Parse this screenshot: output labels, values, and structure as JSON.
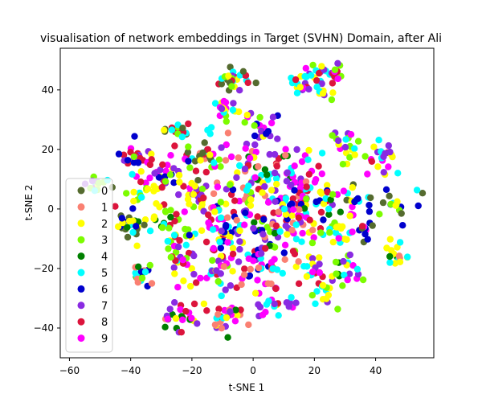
{
  "chart_data": {
    "type": "scatter",
    "title": "visualisation of network embeddings in Target (SVHN) Domain, after Ali",
    "xlabel": "t-SNE 1",
    "ylabel": "t-SNE 2",
    "xlim": [
      -63,
      59
    ],
    "ylim": [
      -50,
      54
    ],
    "xticks": [
      -60,
      -40,
      -20,
      0,
      20,
      40
    ],
    "yticks": [
      -40,
      -20,
      0,
      20,
      40
    ],
    "grid": false,
    "legend_position": "center-left",
    "series": [
      {
        "name": "0",
        "color": "#556b2f"
      },
      {
        "name": "1",
        "color": "#fa8072"
      },
      {
        "name": "2",
        "color": "#ffff00"
      },
      {
        "name": "3",
        "color": "#7cfc00"
      },
      {
        "name": "4",
        "color": "#008000"
      },
      {
        "name": "5",
        "color": "#00ffff"
      },
      {
        "name": "6",
        "color": "#0000cd"
      },
      {
        "name": "7",
        "color": "#8a2be2"
      },
      {
        "name": "8",
        "color": "#dc143c"
      },
      {
        "name": "9",
        "color": "#ff00ff"
      }
    ],
    "clusters": [
      {
        "x": -6,
        "y": 44,
        "spread": 2.5,
        "n": 28,
        "series": [
          7,
          2,
          3,
          5,
          8,
          0
        ]
      },
      {
        "x": 20,
        "y": 43,
        "spread": 3.5,
        "n": 40,
        "series": [
          7,
          9,
          2,
          3,
          5,
          8
        ]
      },
      {
        "x": 27,
        "y": 45,
        "spread": 1.5,
        "n": 12,
        "series": [
          7,
          9,
          3,
          8
        ]
      },
      {
        "x": -40,
        "y": 19,
        "spread": 2.5,
        "n": 18,
        "series": [
          9,
          6,
          7,
          8
        ]
      },
      {
        "x": -51,
        "y": 8,
        "spread": 2.5,
        "n": 14,
        "series": [
          5,
          2,
          3,
          7,
          0
        ]
      },
      {
        "x": -8,
        "y": 34,
        "spread": 2.5,
        "n": 18,
        "series": [
          9,
          7,
          2,
          3,
          5
        ]
      },
      {
        "x": 3,
        "y": 28,
        "spread": 3.5,
        "n": 22,
        "series": [
          6,
          9,
          7,
          3,
          2
        ]
      },
      {
        "x": -25,
        "y": 27,
        "spread": 2.5,
        "n": 16,
        "series": [
          3,
          2,
          0,
          5,
          8
        ]
      },
      {
        "x": 42,
        "y": 18,
        "spread": 3,
        "n": 22,
        "series": [
          7,
          9,
          8,
          5,
          2
        ]
      },
      {
        "x": 30,
        "y": 21,
        "spread": 3,
        "n": 22,
        "series": [
          3,
          2,
          5,
          9,
          7
        ]
      },
      {
        "x": -15,
        "y": 18,
        "spread": 4,
        "n": 40,
        "series": [
          2,
          3,
          0,
          8,
          9,
          5,
          1
        ]
      },
      {
        "x": -28,
        "y": 13,
        "spread": 3.5,
        "n": 28,
        "series": [
          6,
          9,
          8,
          7,
          2
        ]
      },
      {
        "x": 4,
        "y": 14,
        "spread": 5,
        "n": 40,
        "series": [
          8,
          9,
          1,
          7,
          2,
          5,
          4
        ]
      },
      {
        "x": 17,
        "y": 10,
        "spread": 4,
        "n": 30,
        "series": [
          8,
          9,
          5,
          2,
          7
        ]
      },
      {
        "x": -35,
        "y": 5,
        "spread": 4,
        "n": 26,
        "series": [
          3,
          2,
          5,
          8,
          9
        ]
      },
      {
        "x": -20,
        "y": 4,
        "spread": 4,
        "n": 30,
        "series": [
          9,
          8,
          7,
          2,
          3
        ]
      },
      {
        "x": -5,
        "y": 4,
        "spread": 5,
        "n": 45,
        "series": [
          8,
          9,
          7,
          6,
          2,
          5,
          1,
          3
        ]
      },
      {
        "x": 10,
        "y": 3,
        "spread": 5,
        "n": 45,
        "series": [
          9,
          8,
          7,
          5,
          2,
          6,
          1
        ]
      },
      {
        "x": 25,
        "y": 2,
        "spread": 4,
        "n": 30,
        "series": [
          5,
          3,
          2,
          8,
          9,
          6,
          4
        ]
      },
      {
        "x": 34,
        "y": 3,
        "spread": 2,
        "n": 12,
        "series": [
          6,
          5,
          0,
          2
        ]
      },
      {
        "x": 46,
        "y": 1,
        "spread": 3,
        "n": 18,
        "series": [
          2,
          6,
          5,
          0,
          3
        ]
      },
      {
        "x": -40,
        "y": -5,
        "spread": 3,
        "n": 26,
        "series": [
          6,
          5,
          4,
          0,
          2
        ]
      },
      {
        "x": -26,
        "y": -7,
        "spread": 4,
        "n": 30,
        "series": [
          3,
          2,
          4,
          5,
          8
        ]
      },
      {
        "x": -12,
        "y": -8,
        "spread": 4,
        "n": 35,
        "series": [
          9,
          8,
          7,
          5,
          6,
          2
        ]
      },
      {
        "x": 2,
        "y": -8,
        "spread": 5,
        "n": 40,
        "series": [
          8,
          9,
          2,
          6,
          1,
          7,
          4,
          3
        ]
      },
      {
        "x": 15,
        "y": -6,
        "spread": 4,
        "n": 30,
        "series": [
          5,
          8,
          9,
          7,
          2,
          1
        ]
      },
      {
        "x": 26,
        "y": -8,
        "spread": 3,
        "n": 20,
        "series": [
          4,
          5,
          3,
          2,
          9
        ]
      },
      {
        "x": 36,
        "y": -7,
        "spread": 2,
        "n": 12,
        "series": [
          6,
          0,
          9,
          8
        ]
      },
      {
        "x": -37,
        "y": -22,
        "spread": 2.5,
        "n": 18,
        "series": [
          4,
          6,
          5,
          3,
          1
        ]
      },
      {
        "x": -24,
        "y": -18,
        "spread": 3.5,
        "n": 24,
        "series": [
          9,
          7,
          5,
          8,
          2,
          3
        ]
      },
      {
        "x": -10,
        "y": -20,
        "spread": 4,
        "n": 30,
        "series": [
          3,
          2,
          7,
          5,
          9,
          8
        ]
      },
      {
        "x": 3,
        "y": -20,
        "spread": 4.5,
        "n": 34,
        "series": [
          6,
          8,
          9,
          5,
          7,
          1,
          2
        ]
      },
      {
        "x": 17,
        "y": -20,
        "spread": 3.5,
        "n": 24,
        "series": [
          9,
          7,
          8,
          5,
          2,
          1
        ]
      },
      {
        "x": 31,
        "y": -20,
        "spread": 3,
        "n": 20,
        "series": [
          4,
          3,
          5,
          2,
          9,
          7
        ]
      },
      {
        "x": 47,
        "y": -15,
        "spread": 2.5,
        "n": 16,
        "series": [
          2,
          1,
          4,
          5
        ]
      },
      {
        "x": -24,
        "y": -35,
        "spread": 3.5,
        "n": 26,
        "series": [
          8,
          4,
          9,
          7,
          2,
          1
        ]
      },
      {
        "x": -8,
        "y": -37,
        "spread": 4,
        "n": 28,
        "series": [
          1,
          8,
          9,
          4,
          5,
          7,
          2
        ]
      },
      {
        "x": 8,
        "y": -32,
        "spread": 3.5,
        "n": 22,
        "series": [
          9,
          7,
          5,
          2,
          8
        ]
      },
      {
        "x": 25,
        "y": -29,
        "spread": 2.5,
        "n": 12,
        "series": [
          7,
          5,
          2,
          3
        ]
      }
    ]
  }
}
